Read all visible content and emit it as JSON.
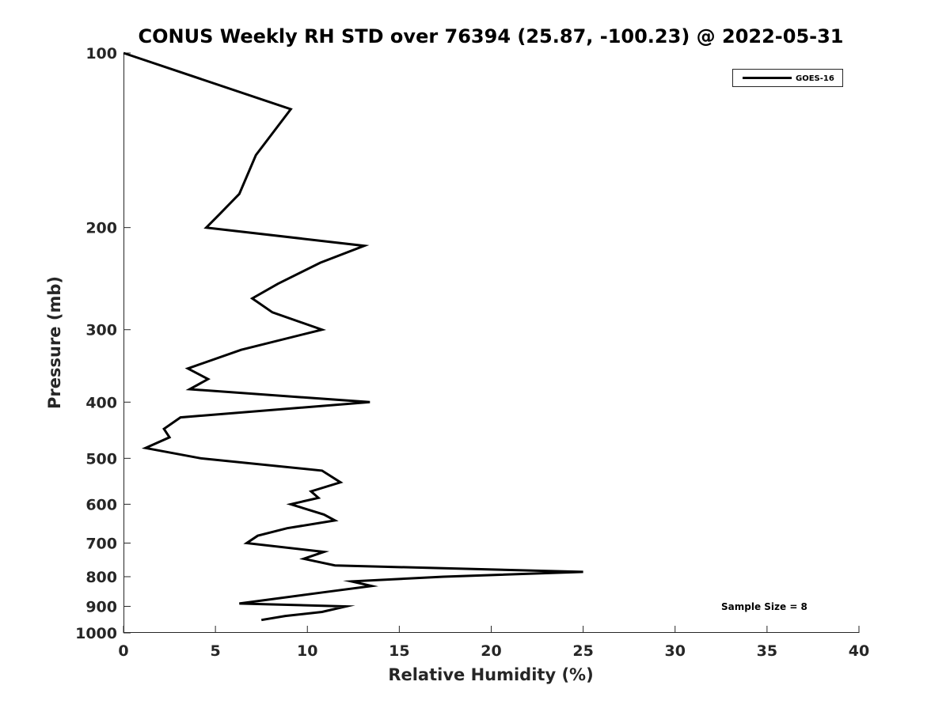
{
  "chart_data": {
    "type": "line",
    "title": "CONUS Weekly RH STD over 76394 (25.87, -100.23) @ 2022-05-31",
    "xlabel": "Relative Humidity (%)",
    "ylabel": "Pressure (mb)",
    "xlim": [
      0,
      40
    ],
    "ylim": [
      100,
      1000
    ],
    "y_scale": "log",
    "y_reversed": true,
    "x_ticks": [
      0,
      5,
      10,
      15,
      20,
      25,
      30,
      35,
      40
    ],
    "y_ticks": [
      100,
      200,
      300,
      400,
      500,
      600,
      700,
      800,
      900,
      1000
    ],
    "grid": false,
    "legend_position": "top-right",
    "annotation": "Sample Size = 8",
    "series": [
      {
        "name": "GOES-16",
        "color": "#000000",
        "points": [
          [
            0.0,
            100
          ],
          [
            9.1,
            125
          ],
          [
            7.2,
            150
          ],
          [
            6.3,
            175
          ],
          [
            5.2,
            190
          ],
          [
            4.5,
            200
          ],
          [
            13.1,
            215
          ],
          [
            10.7,
            230
          ],
          [
            8.4,
            250
          ],
          [
            7.0,
            265
          ],
          [
            8.1,
            280
          ],
          [
            10.8,
            300
          ],
          [
            6.4,
            325
          ],
          [
            3.5,
            350
          ],
          [
            4.6,
            365
          ],
          [
            3.6,
            380
          ],
          [
            13.4,
            400
          ],
          [
            3.1,
            425
          ],
          [
            2.2,
            445
          ],
          [
            2.5,
            460
          ],
          [
            1.2,
            480
          ],
          [
            4.2,
            500
          ],
          [
            10.8,
            525
          ],
          [
            11.8,
            550
          ],
          [
            10.2,
            570
          ],
          [
            10.6,
            585
          ],
          [
            9.1,
            600
          ],
          [
            10.9,
            625
          ],
          [
            11.5,
            640
          ],
          [
            8.9,
            660
          ],
          [
            7.3,
            680
          ],
          [
            6.7,
            700
          ],
          [
            10.9,
            725
          ],
          [
            9.8,
            745
          ],
          [
            11.5,
            765
          ],
          [
            25.0,
            785
          ],
          [
            17.4,
            800
          ],
          [
            12.4,
            815
          ],
          [
            13.5,
            830
          ],
          [
            11.0,
            850
          ],
          [
            6.3,
            890
          ],
          [
            12.1,
            900
          ],
          [
            10.8,
            920
          ],
          [
            8.8,
            935
          ],
          [
            7.5,
            950
          ]
        ]
      }
    ]
  }
}
